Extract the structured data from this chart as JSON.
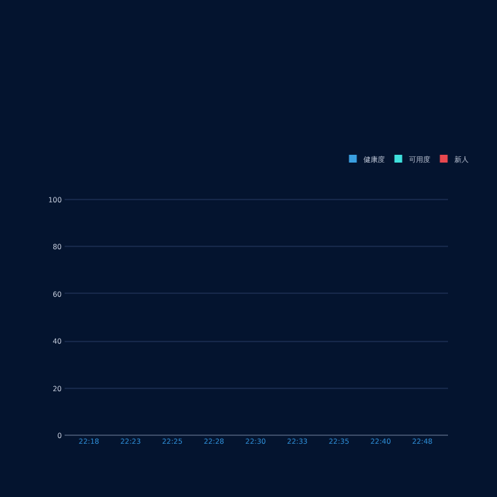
{
  "chart_data": {
    "type": "bar",
    "categories": [
      "22:18",
      "22:23",
      "22:25",
      "22:28",
      "22:30",
      "22:33",
      "22:35",
      "22:40",
      "22:48"
    ],
    "series": [
      {
        "name": "健康度",
        "color": "#3a9fe0",
        "values": [
          null,
          null,
          null,
          null,
          null,
          null,
          null,
          null,
          null
        ]
      },
      {
        "name": "可用度",
        "color": "#3fe0dc",
        "values": [
          null,
          null,
          null,
          null,
          null,
          null,
          null,
          null,
          null
        ]
      },
      {
        "name": "新人",
        "color": "#e8484f",
        "values": [
          null,
          null,
          null,
          null,
          null,
          null,
          null,
          null,
          null
        ]
      }
    ],
    "ylim": [
      0,
      100
    ],
    "yticks": [
      0,
      20,
      40,
      60,
      80,
      100
    ],
    "grid": "y",
    "legend": "top right"
  }
}
